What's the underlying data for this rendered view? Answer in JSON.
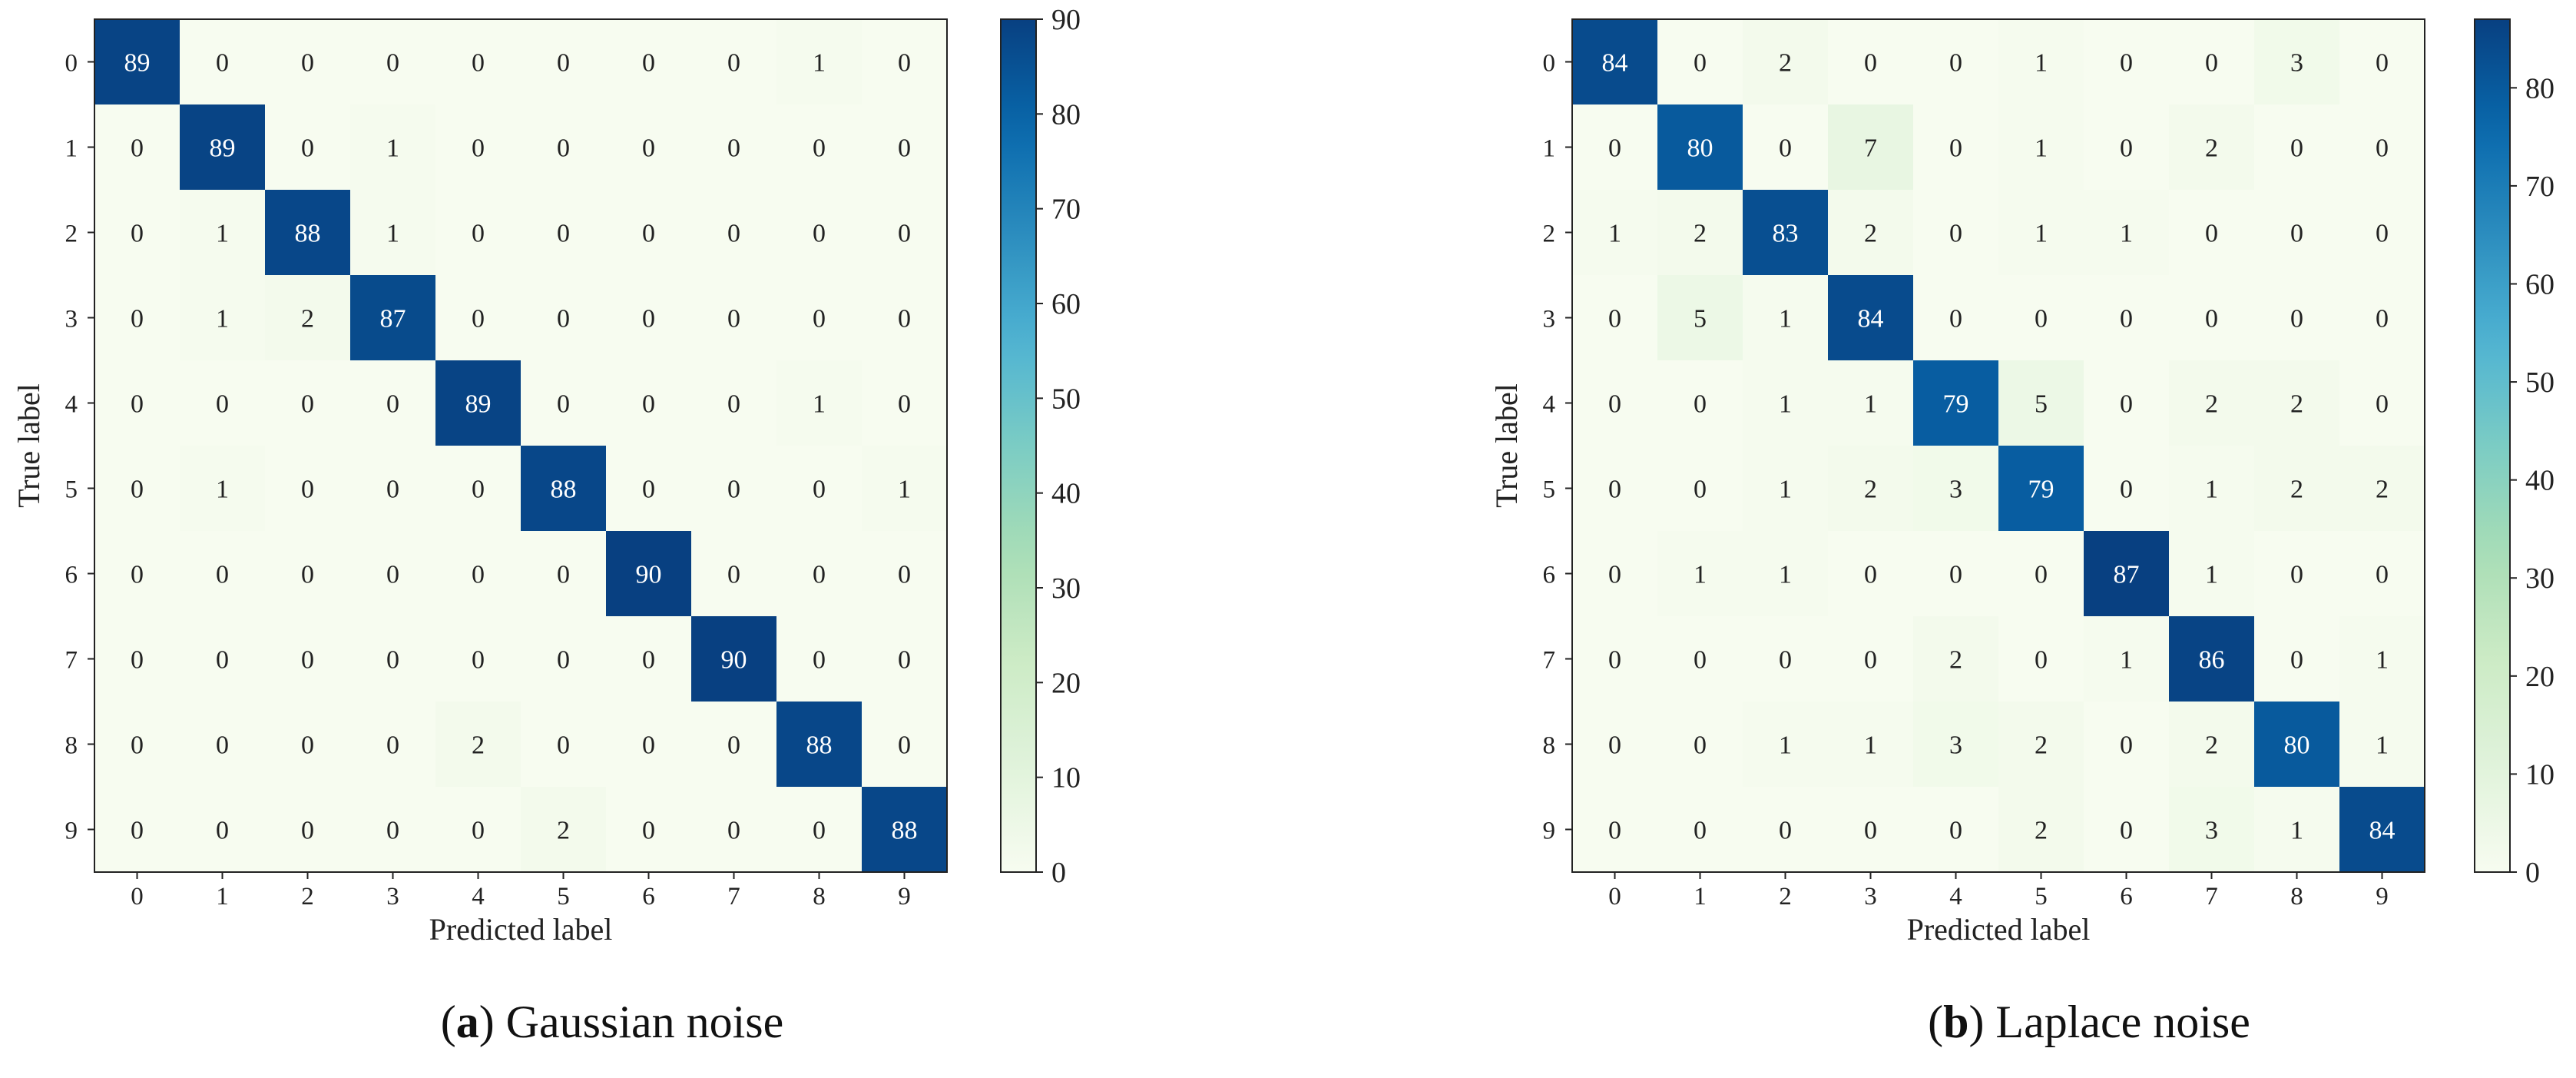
{
  "chart_data": [
    {
      "type": "heatmap",
      "caption": {
        "letter": "a",
        "text": "Gaussian noise"
      },
      "xlabel": "Predicted label",
      "ylabel": "True label",
      "x_ticks": [
        "0",
        "1",
        "2",
        "3",
        "4",
        "5",
        "6",
        "7",
        "8",
        "9"
      ],
      "y_ticks": [
        "0",
        "1",
        "2",
        "3",
        "4",
        "5",
        "6",
        "7",
        "8",
        "9"
      ],
      "colorbar": {
        "min": 0,
        "max": 90,
        "ticks": [
          0,
          10,
          20,
          30,
          40,
          50,
          60,
          70,
          80,
          90
        ],
        "colormap": "GnBu"
      },
      "matrix": [
        [
          89,
          0,
          0,
          0,
          0,
          0,
          0,
          0,
          1,
          0
        ],
        [
          0,
          89,
          0,
          1,
          0,
          0,
          0,
          0,
          0,
          0
        ],
        [
          0,
          1,
          88,
          1,
          0,
          0,
          0,
          0,
          0,
          0
        ],
        [
          0,
          1,
          2,
          87,
          0,
          0,
          0,
          0,
          0,
          0
        ],
        [
          0,
          0,
          0,
          0,
          89,
          0,
          0,
          0,
          1,
          0
        ],
        [
          0,
          1,
          0,
          0,
          0,
          88,
          0,
          0,
          0,
          1
        ],
        [
          0,
          0,
          0,
          0,
          0,
          0,
          90,
          0,
          0,
          0
        ],
        [
          0,
          0,
          0,
          0,
          0,
          0,
          0,
          90,
          0,
          0
        ],
        [
          0,
          0,
          0,
          0,
          2,
          0,
          0,
          0,
          88,
          0
        ],
        [
          0,
          0,
          0,
          0,
          0,
          2,
          0,
          0,
          0,
          88
        ]
      ]
    },
    {
      "type": "heatmap",
      "caption": {
        "letter": "b",
        "text": "Laplace noise"
      },
      "xlabel": "Predicted label",
      "ylabel": "True label",
      "x_ticks": [
        "0",
        "1",
        "2",
        "3",
        "4",
        "5",
        "6",
        "7",
        "8",
        "9"
      ],
      "y_ticks": [
        "0",
        "1",
        "2",
        "3",
        "4",
        "5",
        "6",
        "7",
        "8",
        "9"
      ],
      "colorbar": {
        "min": 0,
        "max": 87,
        "ticks": [
          0,
          10,
          20,
          30,
          40,
          50,
          60,
          70,
          80
        ],
        "colormap": "GnBu"
      },
      "matrix": [
        [
          84,
          0,
          2,
          0,
          0,
          1,
          0,
          0,
          3,
          0
        ],
        [
          0,
          80,
          0,
          7,
          0,
          1,
          0,
          2,
          0,
          0
        ],
        [
          1,
          2,
          83,
          2,
          0,
          1,
          1,
          0,
          0,
          0
        ],
        [
          0,
          5,
          1,
          84,
          0,
          0,
          0,
          0,
          0,
          0
        ],
        [
          0,
          0,
          1,
          1,
          79,
          5,
          0,
          2,
          2,
          0
        ],
        [
          0,
          0,
          1,
          2,
          3,
          79,
          0,
          1,
          2,
          2
        ],
        [
          0,
          1,
          1,
          0,
          0,
          0,
          87,
          1,
          0,
          0
        ],
        [
          0,
          0,
          0,
          0,
          2,
          0,
          1,
          86,
          0,
          1
        ],
        [
          0,
          0,
          1,
          1,
          3,
          2,
          0,
          2,
          80,
          1
        ],
        [
          0,
          0,
          0,
          0,
          0,
          2,
          0,
          3,
          1,
          84
        ]
      ]
    }
  ]
}
